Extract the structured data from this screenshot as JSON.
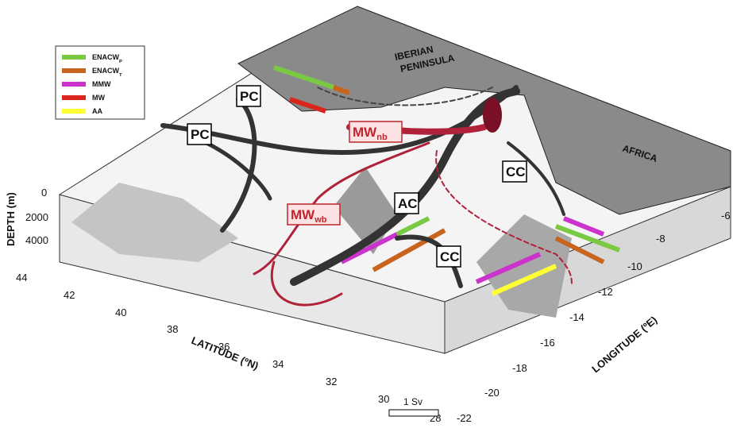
{
  "legend": [
    {
      "text": "ENACW",
      "sub": "P",
      "color": "#7ac943"
    },
    {
      "text": "ENACW",
      "sub": "T",
      "color": "#c8641e"
    },
    {
      "text": "MMW",
      "sub": "",
      "color": "#cc33cc"
    },
    {
      "text": "MW",
      "sub": "",
      "color": "#d9261c"
    },
    {
      "text": "AA",
      "sub": "",
      "color": "#ffff33"
    }
  ],
  "regions": [
    "IBERIAN",
    "PENINSULA",
    "AFRICA"
  ],
  "currents": [
    {
      "text": "PC",
      "sub": ""
    },
    {
      "text": "PC",
      "sub": ""
    },
    {
      "text": "CC",
      "sub": ""
    },
    {
      "text": "AC",
      "sub": ""
    },
    {
      "text": "CC",
      "sub": ""
    },
    {
      "text": "MW",
      "sub": "nb"
    },
    {
      "text": "MW",
      "sub": "wb"
    }
  ],
  "scale": "1 Sv",
  "axes": {
    "depth": {
      "label": "DEPTH (m)",
      "ticks": [
        "0",
        "2000",
        "4000"
      ]
    },
    "latitude": {
      "label": "LATITUDE (ºN)",
      "ticks": [
        "44",
        "42",
        "40",
        "38",
        "36",
        "34",
        "32",
        "30",
        "28"
      ]
    },
    "longitude": {
      "label": "LONGITUDE (ºE)",
      "ticks": [
        "-6",
        "-8",
        "-10",
        "-12",
        "-14",
        "-16",
        "-18",
        "-20",
        "-22"
      ]
    }
  }
}
